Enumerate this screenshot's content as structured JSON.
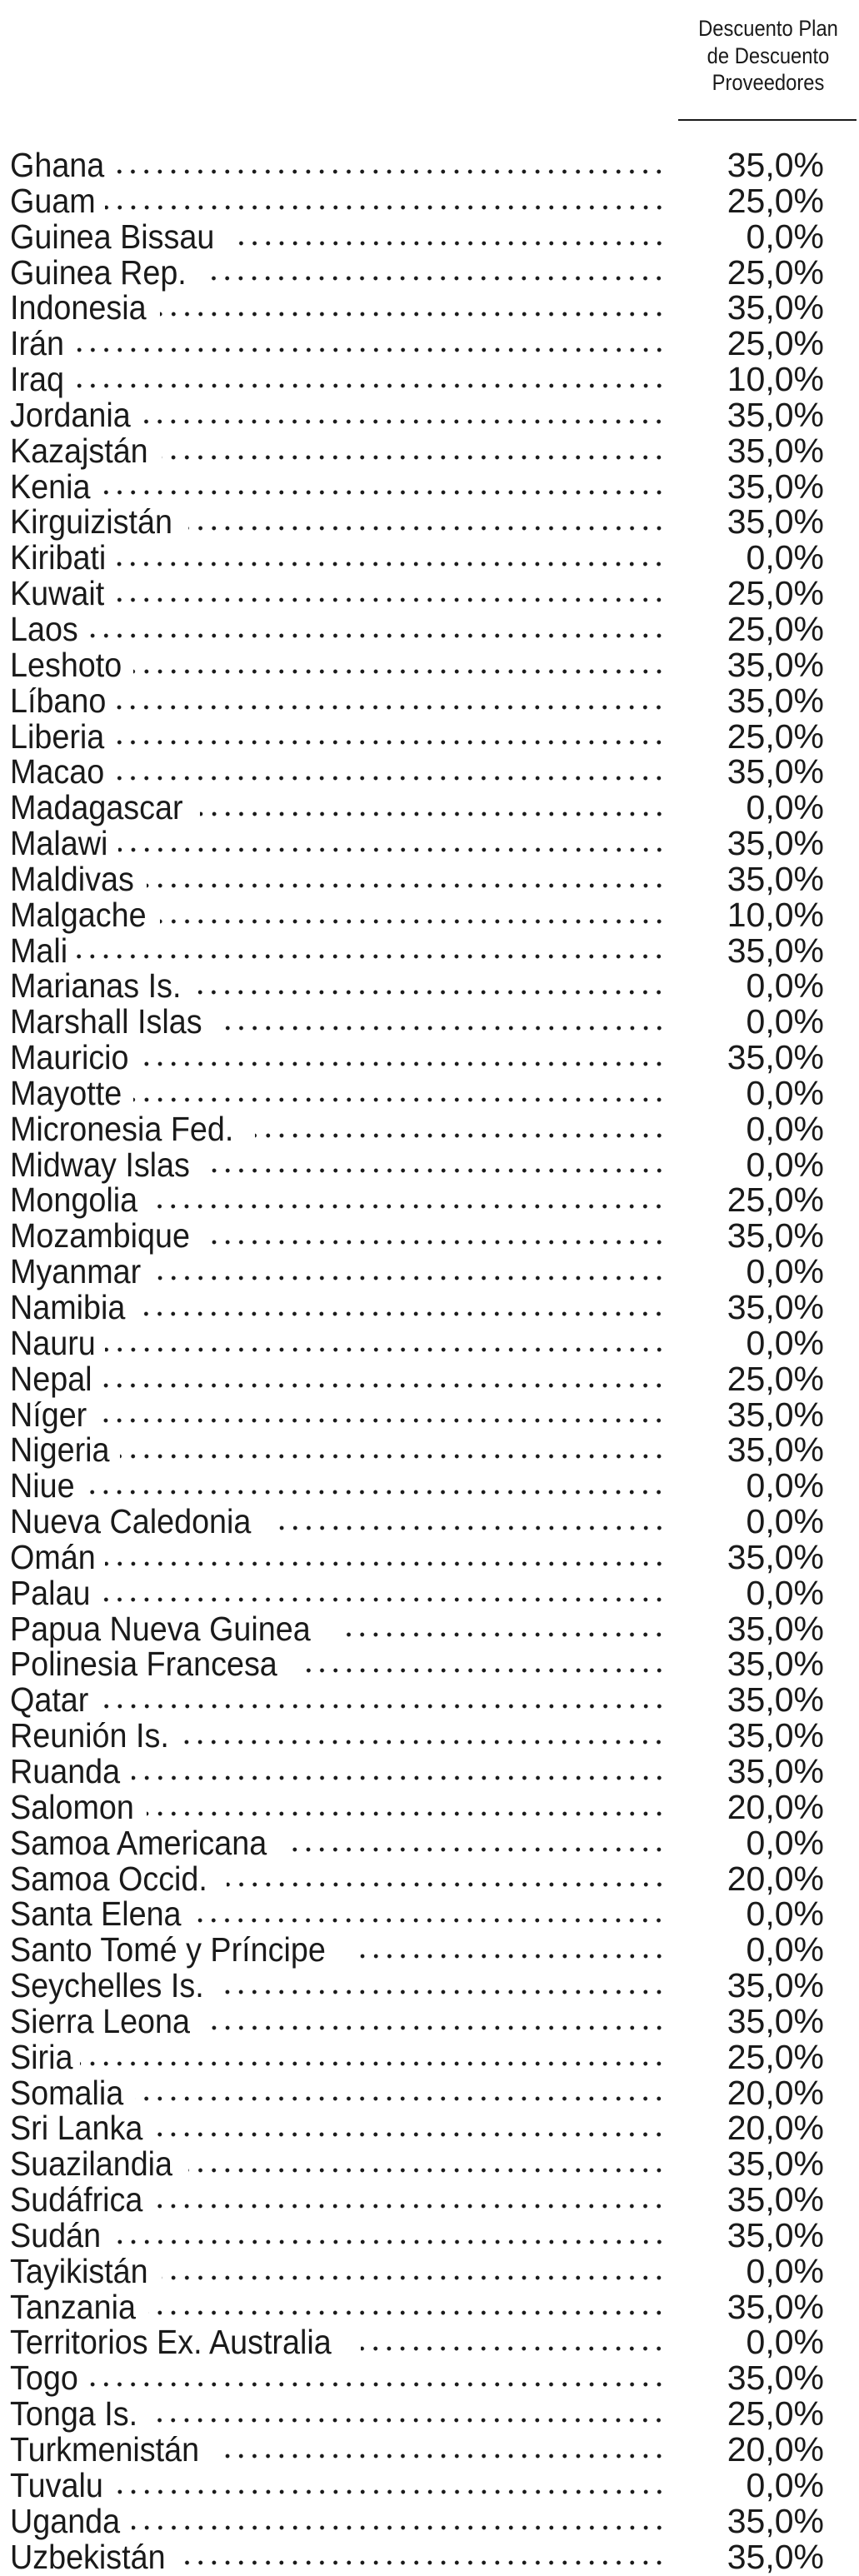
{
  "header": {
    "column_title_lines": [
      "Descuento Plan",
      "de Descuento",
      "Proveedores"
    ]
  },
  "rows": [
    {
      "country": "Ghana",
      "value": "35,0%"
    },
    {
      "country": "Guam",
      "value": "25,0%"
    },
    {
      "country": "Guinea Bissau",
      "value": "0,0%"
    },
    {
      "country": "Guinea Rep.",
      "value": "25,0%"
    },
    {
      "country": "Indonesia",
      "value": "35,0%"
    },
    {
      "country": "Irán",
      "value": "25,0%"
    },
    {
      "country": "Iraq",
      "value": "10,0%"
    },
    {
      "country": "Jordania",
      "value": "35,0%"
    },
    {
      "country": "Kazajstán",
      "value": "35,0%"
    },
    {
      "country": "Kenia",
      "value": "35,0%"
    },
    {
      "country": "Kirguizistán",
      "value": "35,0%"
    },
    {
      "country": "Kiribati",
      "value": "0,0%"
    },
    {
      "country": "Kuwait",
      "value": "25,0%"
    },
    {
      "country": "Laos",
      "value": "25,0%"
    },
    {
      "country": "Leshoto",
      "value": "35,0%"
    },
    {
      "country": "Líbano",
      "value": "35,0%"
    },
    {
      "country": "Liberia",
      "value": "25,0%"
    },
    {
      "country": "Macao",
      "value": "35,0%"
    },
    {
      "country": "Madagascar",
      "value": "0,0%"
    },
    {
      "country": "Malawi",
      "value": "35,0%"
    },
    {
      "country": "Maldivas",
      "value": "35,0%"
    },
    {
      "country": "Malgache",
      "value": "10,0%"
    },
    {
      "country": "Mali",
      "value": "35,0%"
    },
    {
      "country": "Marianas Is.",
      "value": "0,0%"
    },
    {
      "country": "Marshall Islas",
      "value": "0,0%"
    },
    {
      "country": "Mauricio",
      "value": "35,0%"
    },
    {
      "country": "Mayotte",
      "value": "0,0%"
    },
    {
      "country": "Micronesia Fed.",
      "value": "0,0%"
    },
    {
      "country": "Midway Islas",
      "value": "0,0%"
    },
    {
      "country": "Mongolia",
      "value": "25,0%"
    },
    {
      "country": "Mozambique",
      "value": "35,0%"
    },
    {
      "country": "Myanmar",
      "value": "0,0%"
    },
    {
      "country": "Namibia",
      "value": "35,0%"
    },
    {
      "country": "Nauru",
      "value": "0,0%"
    },
    {
      "country": "Nepal",
      "value": "25,0%"
    },
    {
      "country": "Níger",
      "value": "35,0%"
    },
    {
      "country": "Nigeria",
      "value": "35,0%"
    },
    {
      "country": "Niue",
      "value": "0,0%"
    },
    {
      "country": "Nueva Caledonia",
      "value": "0,0%"
    },
    {
      "country": "Omán",
      "value": "35,0%"
    },
    {
      "country": "Palau",
      "value": "0,0%"
    },
    {
      "country": "Papua Nueva Guinea",
      "value": "35,0%"
    },
    {
      "country": "Polinesia Francesa",
      "value": "35,0%"
    },
    {
      "country": "Qatar",
      "value": "35,0%"
    },
    {
      "country": "Reunión Is.",
      "value": "35,0%"
    },
    {
      "country": "Ruanda",
      "value": "35,0%"
    },
    {
      "country": "Salomon",
      "value": "20,0%"
    },
    {
      "country": "Samoa Americana",
      "value": "0,0%"
    },
    {
      "country": "Samoa Occid.",
      "value": "20,0%"
    },
    {
      "country": "Santa Elena",
      "value": "0,0%"
    },
    {
      "country": "Santo Tomé y Príncipe",
      "value": "0,0%"
    },
    {
      "country": "Seychelles Is.",
      "value": "35,0%"
    },
    {
      "country": "Sierra Leona",
      "value": "35,0%"
    },
    {
      "country": "Siria",
      "value": "25,0%"
    },
    {
      "country": "Somalia",
      "value": "20,0%"
    },
    {
      "country": "Sri Lanka",
      "value": "20,0%"
    },
    {
      "country": "Suazilandia",
      "value": "35,0%"
    },
    {
      "country": "Sudáfrica",
      "value": "35,0%"
    },
    {
      "country": "Sudán",
      "value": "35,0%"
    },
    {
      "country": "Tayikistán",
      "value": "0,0%"
    },
    {
      "country": "Tanzania",
      "value": "35,0%"
    },
    {
      "country": "Territorios Ex. Australia",
      "value": "0,0%"
    },
    {
      "country": "Togo",
      "value": "35,0%"
    },
    {
      "country": "Tonga Is.",
      "value": "25,0%"
    },
    {
      "country": "Turkmenistán",
      "value": "20,0%"
    },
    {
      "country": "Tuvalu",
      "value": "0,0%"
    },
    {
      "country": "Uganda",
      "value": "35,0%"
    },
    {
      "country": "Uzbekistán",
      "value": "35,0%"
    }
  ]
}
